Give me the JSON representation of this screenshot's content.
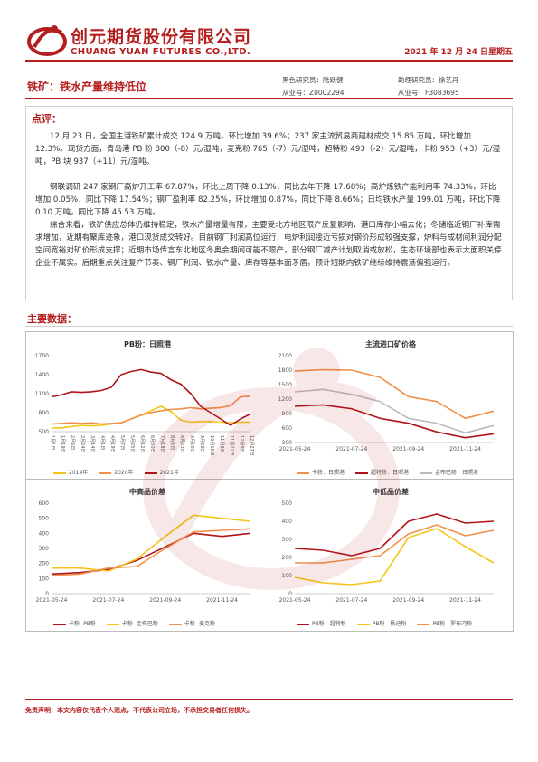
{
  "header": {
    "company_cn": "创元期货股份有限公司",
    "company_en": "CHUANG YUAN FUTURES CO.,LTD.",
    "date": "2021 年 12 月 24 日星期五"
  },
  "title": "铁矿：铁水产量维持低位",
  "analysts": {
    "black_label": "黑色研究员：陆跃健",
    "black_id": "从业号：Z0002294",
    "assistant_label": "助理研究员：徐艺丹",
    "assistant_id": "从业号：F3083695"
  },
  "comment": {
    "heading": "点评：",
    "paragraphs": [
      "12 月 23 日，全国主港铁矿累计成交 124.9 万吨，环比增加 39.6%；237 家主流贸易商建材成交 15.85 万吨，环比增加 12.3%。现货方面，青岛港 PB 粉 800（-8）元/湿吨，麦克粉 765（-7）元/湿吨，超特粉 493（-2）元/湿吨，卡粉 953（+3）元/湿吨，PB 块 937（+11）元/湿吨。",
      "钢联调研 247 家钢厂高炉开工率 67.87%，环比上周下降 0.13%，同比去年下降 17.68%；高炉炼铁产能利用率 74.33%，环比增加 0.05%，同比下降 17.54%；钢厂盈利率 82.25%，环比增加 0.87%，同比下降 8.66%；日均铁水产量 199.01 万吨，环比下降 0.10 万吨，同比下降 45.53 万吨。",
      "综合来看，铁矿供应总体仍维持稳定，铁水产量增量有限，主要受北方地区限产反复影响，港口库存小幅去化；冬储临近钢厂补库需求增加，近期有聚库迹象，港口现货成交转好。目前钢厂利润高位运行，电炉利润接近亏损对钢价形成较强支撑，炉料与成材间利润分配空间宽裕对矿价形成支撑；近期市场传言东北地区冬奥会期间可能不限产，部分钢厂减产计划取消或放松，生态环境部也表示大面积关停企业不属实。后期重点关注复产节奏、钢厂利润、铁水产量、库存等基本面矛盾，预计短期内铁矿继续维持震荡偏强运行。"
    ]
  },
  "main_data_heading": "主要数据：",
  "colors": {
    "brand": "#b41e1e",
    "orange": "#f0904a",
    "yellow": "#f5c518",
    "gray": "#bcbcbc",
    "dark_red": "#b0141a"
  },
  "chart_data": [
    {
      "type": "line",
      "title": "PB粉：日照港",
      "categories": [
        "1月1日",
        "1月19日",
        "2月6日",
        "2月24日",
        "3月14日",
        "4月1日",
        "4月19日",
        "5月7日",
        "5月25日",
        "6月12日",
        "6月30日",
        "7月18日",
        "8月5日",
        "8月23日",
        "9月10日",
        "9月28日",
        "10月16日",
        "11月3日",
        "11月21日",
        "12月9日",
        "12月27日"
      ],
      "ylim": [
        500,
        1700
      ],
      "yticks": [
        500,
        800,
        1100,
        1400,
        1700
      ],
      "series": [
        {
          "name": "2019年",
          "values": [
            560,
            560,
            580,
            600,
            590,
            600,
            620,
            640,
            700,
            760,
            830,
            900,
            820,
            680,
            650,
            660,
            660,
            650,
            640,
            650,
            650
          ]
        },
        {
          "name": "2020年",
          "values": [
            620,
            630,
            640,
            630,
            640,
            620,
            630,
            640,
            700,
            760,
            800,
            830,
            850,
            860,
            880,
            860,
            870,
            880,
            910,
            1050,
            1060
          ]
        },
        {
          "name": "2021年",
          "values": [
            1050,
            1080,
            1130,
            1120,
            1130,
            1150,
            1200,
            1400,
            1450,
            1480,
            1440,
            1420,
            1320,
            1250,
            1100,
            900,
            800,
            700,
            600,
            700,
            780
          ]
        }
      ]
    },
    {
      "type": "line",
      "title": "主流进口矿价格",
      "x": [
        "2021-05-24",
        "2021-06-24",
        "2021-07-24",
        "2021-08-24",
        "2021-09-24",
        "2021-10-24",
        "2021-11-24",
        "2021-12-24"
      ],
      "xticks": [
        "2021-05-24",
        "2021-07-24",
        "2021-09-24",
        "2021-11-24"
      ],
      "ylim": [
        300,
        2100
      ],
      "yticks": [
        300,
        600,
        900,
        1200,
        1500,
        1800,
        2100
      ],
      "series": [
        {
          "name": "卡粉：日照港",
          "values": [
            1780,
            1810,
            1800,
            1650,
            1250,
            1150,
            800,
            950
          ]
        },
        {
          "name": "超特粉：日照港",
          "values": [
            1050,
            1080,
            1000,
            800,
            700,
            520,
            400,
            480
          ]
        },
        {
          "name": "金布巴粉：日照港",
          "values": [
            1350,
            1400,
            1300,
            1150,
            800,
            700,
            500,
            650
          ]
        }
      ]
    },
    {
      "type": "line",
      "title": "中高品价差",
      "x": [
        "2021-05-24",
        "2021-06-24",
        "2021-07-24",
        "2021-08-24",
        "2021-09-24",
        "2021-10-24",
        "2021-11-24",
        "2021-12-24"
      ],
      "xticks": [
        "2021-05-24",
        "2021-07-24",
        "2021-09-24",
        "2021-11-24"
      ],
      "ylim": [
        0,
        600
      ],
      "yticks": [
        0,
        100,
        200,
        300,
        400,
        500,
        600
      ],
      "series": [
        {
          "name": "卡粉 -PB粉",
          "values": [
            130,
            140,
            160,
            220,
            310,
            400,
            380,
            400
          ]
        },
        {
          "name": "卡粉 -金布巴粉",
          "values": [
            170,
            170,
            150,
            230,
            380,
            520,
            500,
            480
          ]
        },
        {
          "name": "卡粉 -麦克粉",
          "values": [
            120,
            130,
            170,
            180,
            300,
            410,
            420,
            430
          ]
        }
      ]
    },
    {
      "type": "line",
      "title": "中低品价差",
      "x": [
        "2021-05-24",
        "2021-06-24",
        "2021-07-24",
        "2021-08-24",
        "2021-09-24",
        "2021-10-24",
        "2021-11-24",
        "2021-12-24"
      ],
      "xticks": [
        "2021-05-24",
        "2021-07-24",
        "2021-09-24",
        "2021-11-24"
      ],
      "ylim": [
        0,
        500
      ],
      "yticks": [
        0,
        100,
        200,
        300,
        400,
        500
      ],
      "series": [
        {
          "name": "PB粉 - 超特粉",
          "values": [
            250,
            240,
            210,
            250,
            400,
            440,
            390,
            400
          ]
        },
        {
          "name": "PB粉 - 杨迪粉",
          "values": [
            90,
            60,
            50,
            70,
            310,
            360,
            260,
            170
          ]
        },
        {
          "name": "PB粉 - 罗布河粉",
          "values": [
            170,
            170,
            190,
            210,
            330,
            380,
            320,
            350
          ]
        }
      ]
    }
  ],
  "disclaimer": "免责声明：本文内容仅代表个人观点，不代表公司立场，不承担交易者任何损失。"
}
